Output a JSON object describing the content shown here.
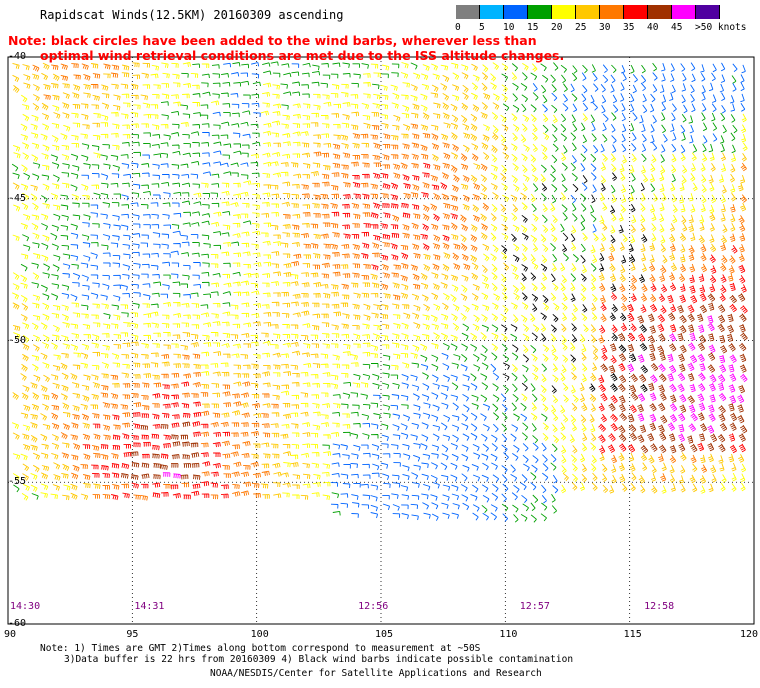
{
  "title": "Rapidscat Winds(12.5KM) 20160309 ascending",
  "note": {
    "line1": "Note: black circles have been added to the wind barbs, wherever less than",
    "line2": "optimal wind retrieval conditions are met due to the ISS altitude changes."
  },
  "legend": {
    "labels": [
      "0",
      "5",
      "10",
      "15",
      "20",
      "25",
      "30",
      "35",
      "40",
      "45",
      ">50 knots"
    ],
    "colors": [
      "#7f7f7f",
      "#00b4ff",
      "#0064ff",
      "#00a000",
      "#ffff00",
      "#ffc800",
      "#ff7800",
      "#ff0000",
      "#a03000",
      "#ff00ff",
      "#5000a0"
    ]
  },
  "map": {
    "lat_ticks": [
      "-40",
      "-45",
      "-50",
      "-55",
      "-60"
    ],
    "lon_ticks": [
      "90",
      "95",
      "100",
      "105",
      "110",
      "115",
      "120"
    ],
    "times": [
      {
        "label": "14:30",
        "lon": 90
      },
      {
        "label": "14:31",
        "lon": 95
      },
      {
        "label": "12:56",
        "lon": 104
      },
      {
        "label": "12:57",
        "lon": 110.5
      },
      {
        "label": "12:58",
        "lon": 115.5
      }
    ],
    "lon_range": [
      90,
      120
    ],
    "lat_range": [
      -40,
      -60
    ]
  },
  "footer": {
    "line1": "Note: 1) Times are GMT 2)Times along bottom correspond to measurement at ~50S",
    "line2": "3)Data buffer is 22 hrs from 20160309 4) Black wind barbs indicate possible contamination",
    "line3": "NOAA/NESDIS/Center for Satellite Applications and Research"
  }
}
